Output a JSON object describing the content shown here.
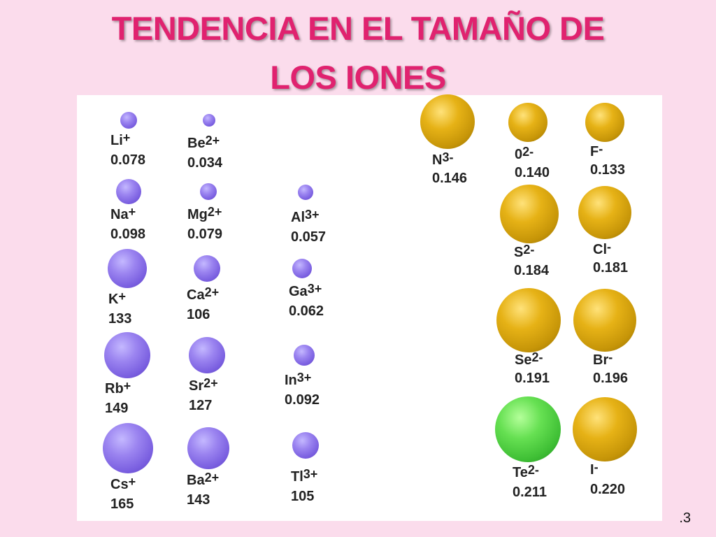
{
  "title": {
    "line1": "TENDENCIA EN EL TAMAÑO DE",
    "line2": "LOS IONES"
  },
  "colors": {
    "title": "#e0226f",
    "background": "#fbdcec",
    "cation": "#8a70ea",
    "anion": "#d9a712",
    "tellurium": "#4fd040"
  },
  "cations": [
    {
      "symbol": "Li",
      "charge": "+",
      "radius": "0.078"
    },
    {
      "symbol": "Be",
      "charge": "2+",
      "radius": "0.034"
    },
    {
      "symbol": "Na",
      "charge": "+",
      "radius": "0.098"
    },
    {
      "symbol": "Mg",
      "charge": "2+",
      "radius": "0.079"
    },
    {
      "symbol": "Al",
      "charge": "3+",
      "radius": "0.057"
    },
    {
      "symbol": "K",
      "charge": "+",
      "radius": "133"
    },
    {
      "symbol": "Ca",
      "charge": "2+",
      "radius": "106"
    },
    {
      "symbol": "Ga",
      "charge": "3+",
      "radius": "0.062"
    },
    {
      "symbol": "Rb",
      "charge": "+",
      "radius": "149"
    },
    {
      "symbol": "Sr",
      "charge": "2+",
      "radius": "127"
    },
    {
      "symbol": "In",
      "charge": "3+",
      "radius": "0.092"
    },
    {
      "symbol": "Cs",
      "charge": "+",
      "radius": "165"
    },
    {
      "symbol": "Ba",
      "charge": "2+",
      "radius": "143"
    },
    {
      "symbol": "Tl",
      "charge": "3+",
      "radius": "105"
    }
  ],
  "anions": [
    {
      "symbol": "N",
      "charge": "3-",
      "radius": "0.146"
    },
    {
      "symbol": "0",
      "charge": "2-",
      "radius": "0.140"
    },
    {
      "symbol": "F",
      "charge": "-",
      "radius": "0.133"
    },
    {
      "symbol": "S",
      "charge": "2-",
      "radius": "0.184"
    },
    {
      "symbol": "Cl",
      "charge": "-",
      "radius": "0.181"
    },
    {
      "symbol": "Se",
      "charge": "2-",
      "radius": "0.191"
    },
    {
      "symbol": "Br",
      "charge": "-",
      "radius": "0.196"
    },
    {
      "symbol": "Te",
      "charge": "2-",
      "radius": "0.211"
    },
    {
      "symbol": "I",
      "charge": "-",
      "radius": "0.220"
    }
  ],
  "footer": ".3"
}
